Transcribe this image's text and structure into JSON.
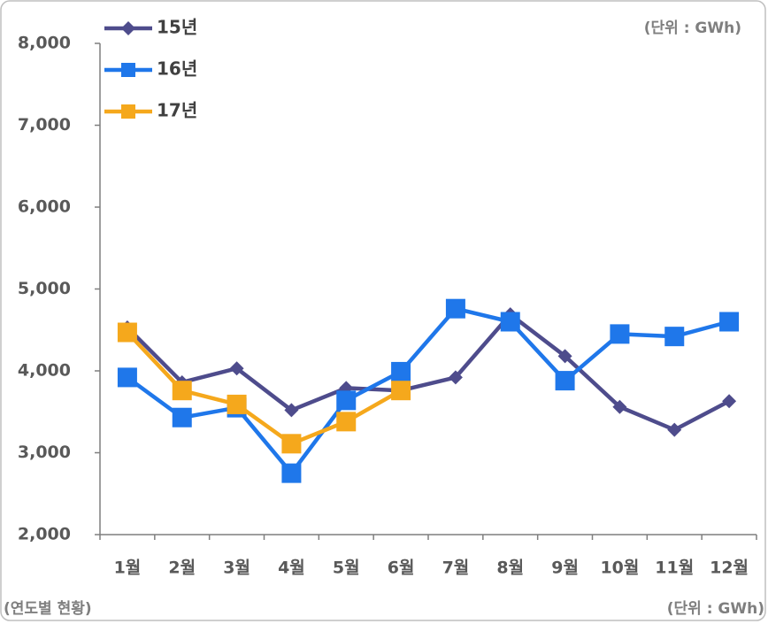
{
  "chart_data": {
    "type": "line",
    "unit_note": "(단위 : GWh)",
    "footer_left": "(연도별 현황)",
    "footer_right": "(단위 : GWh)",
    "categories": [
      "1월",
      "2월",
      "3월",
      "4월",
      "5월",
      "6월",
      "7월",
      "8월",
      "9월",
      "10월",
      "11월",
      "12월"
    ],
    "series": [
      {
        "name": "15년",
        "color": "#4e4c8c",
        "marker": "diamond",
        "values": [
          4530,
          3860,
          4030,
          3520,
          3790,
          3760,
          3920,
          4690,
          4180,
          3560,
          3280,
          3630
        ]
      },
      {
        "name": "16년",
        "color": "#1f77ea",
        "marker": "square",
        "values": [
          3920,
          3430,
          3550,
          2750,
          3640,
          3990,
          4760,
          4600,
          3880,
          4450,
          4420,
          4600
        ]
      },
      {
        "name": "17년",
        "color": "#f5a81c",
        "marker": "square",
        "values": [
          4470,
          3760,
          3590,
          3110,
          3380,
          3760,
          null,
          null,
          null,
          null,
          null,
          null
        ]
      }
    ],
    "ylim": [
      2000,
      8000
    ],
    "yticks": [
      {
        "value": 2000,
        "label": "2,000"
      },
      {
        "value": 3000,
        "label": "3,000"
      },
      {
        "value": 4000,
        "label": "4,000"
      },
      {
        "value": 5000,
        "label": "5,000"
      },
      {
        "value": 6000,
        "label": "6,000"
      },
      {
        "value": 7000,
        "label": "7,000"
      },
      {
        "value": 8000,
        "label": "8,000"
      }
    ],
    "legend": "top-left"
  }
}
